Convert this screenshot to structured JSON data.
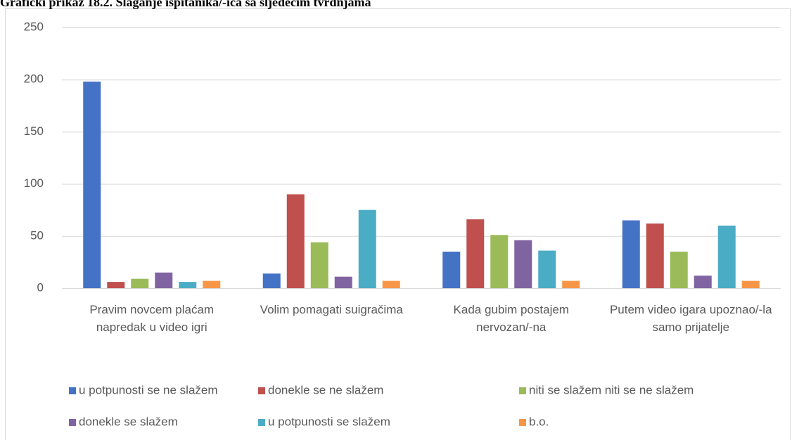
{
  "chart_data": {
    "type": "bar",
    "title": "Grafički prikaz 18.2. Slaganje ispitanika/-ica sa sljedećim tvrdnjama",
    "categories": [
      "Pravim novcem plaćam napredak u video igri",
      "Volim pomagati suigračima",
      "Kada gubim postajem nervozan/-na",
      "Putem video igara upoznao/-la samo prijatelje"
    ],
    "series": [
      {
        "name": "u potpunosti se ne slažem",
        "color": "#4472c4",
        "values": [
          198,
          14,
          35,
          65
        ]
      },
      {
        "name": "donekle se ne slažem",
        "color": "#c0504d",
        "values": [
          6,
          90,
          66,
          62
        ]
      },
      {
        "name": "niti se slažem niti se ne slažem",
        "color": "#9bbb59",
        "values": [
          9,
          44,
          51,
          35
        ]
      },
      {
        "name": "donekle se slažem",
        "color": "#8064a2",
        "values": [
          15,
          11,
          46,
          12
        ]
      },
      {
        "name": "u potpunosti se slažem",
        "color": "#4bacc6",
        "values": [
          6,
          75,
          36,
          60
        ]
      },
      {
        "name": "b.o.",
        "color": "#f79646",
        "values": [
          7,
          7,
          7,
          7
        ]
      }
    ],
    "ylim": [
      0,
      250
    ],
    "yticks": [
      0,
      50,
      100,
      150,
      200,
      250
    ],
    "grid": true,
    "legend": "bottom"
  }
}
